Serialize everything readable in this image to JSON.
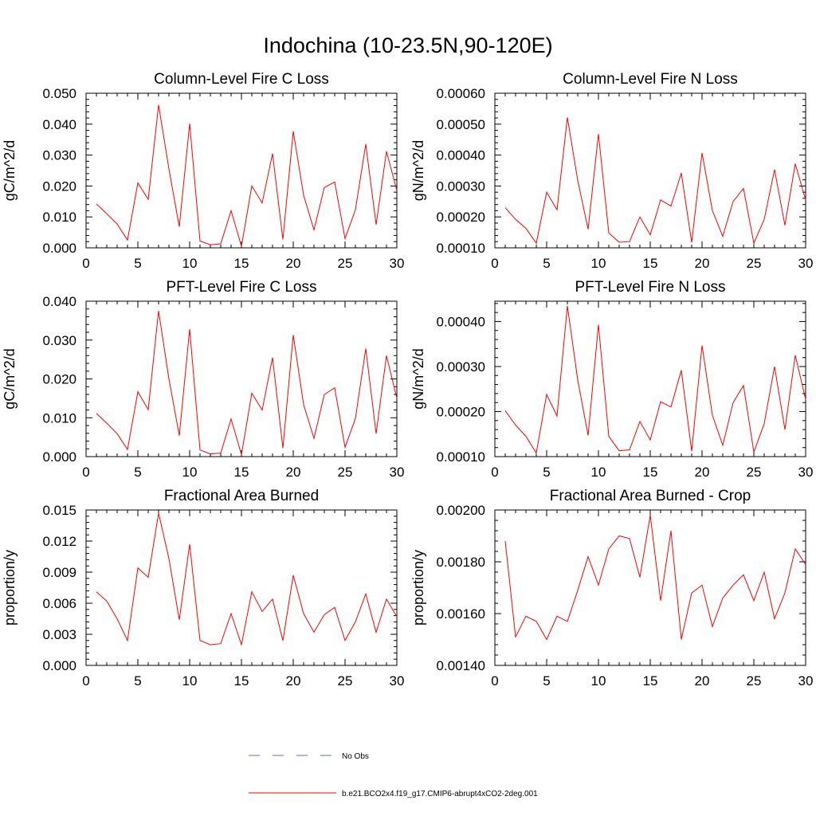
{
  "figure_title": "Indochina (10-23.5N,90-120E)",
  "legend": {
    "entries": [
      {
        "label": "No Obs",
        "color": "#6666cc",
        "style": "dashed"
      },
      {
        "label": "b.e21.BCO2x4.f19_g17.CMIP6-abrupt4xCO2-2deg.001",
        "color": "#ff0000",
        "style": "solid"
      }
    ]
  },
  "chart_data": [
    {
      "type": "line",
      "title": "Column-Level Fire C Loss",
      "xlabel": "",
      "ylabel": "gC/m^2/d",
      "xlim": [
        0,
        30
      ],
      "ylim": [
        0,
        0.05
      ],
      "x_ticks": [
        "0",
        "5",
        "10",
        "15",
        "20",
        "25",
        "30"
      ],
      "y_ticks": [
        "0.000",
        "0.010",
        "0.020",
        "0.030",
        "0.040",
        "0.050"
      ],
      "y_tick_values": [
        0,
        0.01,
        0.02,
        0.03,
        0.04,
        0.05
      ],
      "x": [
        1,
        2,
        3,
        4,
        5,
        6,
        7,
        8,
        9,
        10,
        11,
        12,
        13,
        14,
        15,
        16,
        17,
        18,
        19,
        20,
        21,
        22,
        23,
        24,
        25,
        26,
        27,
        28,
        29,
        30
      ],
      "series": [
        {
          "name": "b.e21.BCO2x4.f19_g17.CMIP6-abrupt4xCO2-2deg.001",
          "color": "#ff0000",
          "values": [
            0.0142,
            0.011,
            0.0077,
            0.0025,
            0.021,
            0.0157,
            0.0462,
            0.0255,
            0.0068,
            0.0402,
            0.0022,
            0.001,
            0.0013,
            0.012,
            0.0005,
            0.02,
            0.0145,
            0.0305,
            0.0027,
            0.0377,
            0.017,
            0.0058,
            0.0195,
            0.0213,
            0.003,
            0.0123,
            0.0335,
            0.0075,
            0.0312,
            0.0185
          ]
        }
      ]
    },
    {
      "type": "line",
      "title": "Column-Level Fire N Loss",
      "xlabel": "",
      "ylabel": "gN/m^2/d",
      "xlim": [
        0,
        30
      ],
      "ylim": [
        0.0001,
        0.0006
      ],
      "x_ticks": [
        "0",
        "5",
        "10",
        "15",
        "20",
        "25",
        "30"
      ],
      "y_ticks": [
        "0.00010",
        "0.00020",
        "0.00030",
        "0.00040",
        "0.00050",
        "0.00060"
      ],
      "y_tick_values": [
        0.0001,
        0.0002,
        0.0003,
        0.0004,
        0.0005,
        0.0006
      ],
      "x": [
        1,
        2,
        3,
        4,
        5,
        6,
        7,
        8,
        9,
        10,
        11,
        12,
        13,
        14,
        15,
        16,
        17,
        18,
        19,
        20,
        21,
        22,
        23,
        24,
        25,
        26,
        27,
        28,
        29,
        30
      ],
      "series": [
        {
          "name": "b.e21.BCO2x4.f19_g17.CMIP6-abrupt4xCO2-2deg.001",
          "color": "#ff0000",
          "values": [
            0.00023,
            0.000192,
            0.000163,
            0.000115,
            0.00028,
            0.000223,
            0.000522,
            0.000318,
            0.00016,
            0.000468,
            0.000148,
            0.000118,
            0.00012,
            0.0002,
            0.000142,
            0.000255,
            0.000235,
            0.000342,
            0.000117,
            0.000407,
            0.00022,
            0.000137,
            0.00025,
            0.000292,
            0.000115,
            0.000192,
            0.000353,
            0.000173,
            0.000372,
            0.000255
          ]
        }
      ]
    },
    {
      "type": "line",
      "title": "PFT-Level Fire C Loss",
      "xlabel": "",
      "ylabel": "gC/m^2/d",
      "xlim": [
        0,
        30
      ],
      "ylim": [
        0,
        0.04
      ],
      "x_ticks": [
        "0",
        "5",
        "10",
        "15",
        "20",
        "25",
        "30"
      ],
      "y_ticks": [
        "0.000",
        "0.010",
        "0.020",
        "0.030",
        "0.040"
      ],
      "y_tick_values": [
        0,
        0.01,
        0.02,
        0.03,
        0.04
      ],
      "x": [
        1,
        2,
        3,
        4,
        5,
        6,
        7,
        8,
        9,
        10,
        11,
        12,
        13,
        14,
        15,
        16,
        17,
        18,
        19,
        20,
        21,
        22,
        23,
        24,
        25,
        26,
        27,
        28,
        29,
        30
      ],
      "series": [
        {
          "name": "b.e21.BCO2x4.f19_g17.CMIP6-abrupt4xCO2-2deg.001",
          "color": "#ff0000",
          "values": [
            0.0111,
            0.0086,
            0.0059,
            0.0018,
            0.0167,
            0.0121,
            0.0375,
            0.02,
            0.0054,
            0.0328,
            0.0017,
            0.0007,
            0.0009,
            0.0097,
            0.0005,
            0.0163,
            0.012,
            0.0255,
            0.0022,
            0.0313,
            0.0134,
            0.0047,
            0.016,
            0.0177,
            0.0024,
            0.0098,
            0.0278,
            0.0059,
            0.026,
            0.015
          ]
        }
      ]
    },
    {
      "type": "line",
      "title": "PFT-Level Fire N Loss",
      "xlabel": "",
      "ylabel": "gN/m^2/d",
      "xlim": [
        0,
        30
      ],
      "ylim": [
        0.0001,
        0.000445
      ],
      "x_ticks": [
        "0",
        "5",
        "10",
        "15",
        "20",
        "25",
        "30"
      ],
      "y_ticks": [
        "0.00010",
        "0.00020",
        "0.00030",
        "0.00040"
      ],
      "y_tick_values": [
        0.0001,
        0.0002,
        0.0003,
        0.0004
      ],
      "x": [
        1,
        2,
        3,
        4,
        5,
        6,
        7,
        8,
        9,
        10,
        11,
        12,
        13,
        14,
        15,
        16,
        17,
        18,
        19,
        20,
        21,
        22,
        23,
        24,
        25,
        26,
        27,
        28,
        29,
        30
      ],
      "series": [
        {
          "name": "b.e21.BCO2x4.f19_g17.CMIP6-abrupt4xCO2-2deg.001",
          "color": "#ff0000",
          "values": [
            0.000202,
            0.00017,
            0.000145,
            0.000108,
            0.000238,
            0.00019,
            0.000435,
            0.00027,
            0.000147,
            0.000393,
            0.000145,
            0.000113,
            0.000115,
            0.000178,
            0.000137,
            0.000222,
            0.00021,
            0.000292,
            0.000112,
            0.000347,
            0.000192,
            0.000125,
            0.00022,
            0.000258,
            0.00011,
            0.000173,
            0.0003,
            0.00016,
            0.000325,
            0.000227
          ]
        }
      ]
    },
    {
      "type": "line",
      "title": "Fractional Area Burned",
      "xlabel": "",
      "ylabel": "proportion/y",
      "xlim": [
        0,
        30
      ],
      "ylim": [
        0,
        0.015
      ],
      "x_ticks": [
        "0",
        "5",
        "10",
        "15",
        "20",
        "25",
        "30"
      ],
      "y_ticks": [
        "0.000",
        "0.003",
        "0.006",
        "0.009",
        "0.012",
        "0.015"
      ],
      "y_tick_values": [
        0,
        0.003,
        0.006,
        0.009,
        0.012,
        0.015
      ],
      "x": [
        1,
        2,
        3,
        4,
        5,
        6,
        7,
        8,
        9,
        10,
        11,
        12,
        13,
        14,
        15,
        16,
        17,
        18,
        19,
        20,
        21,
        22,
        23,
        24,
        25,
        26,
        27,
        28,
        29,
        30
      ],
      "series": [
        {
          "name": "b.e21.BCO2x4.f19_g17.CMIP6-abrupt4xCO2-2deg.001",
          "color": "#ff0000",
          "values": [
            0.0071,
            0.0062,
            0.0045,
            0.0024,
            0.0094,
            0.0085,
            0.0147,
            0.0103,
            0.0044,
            0.0117,
            0.0024,
            0.002,
            0.0021,
            0.005,
            0.002,
            0.0071,
            0.0052,
            0.0064,
            0.0024,
            0.0087,
            0.005,
            0.0032,
            0.0049,
            0.0056,
            0.0024,
            0.0042,
            0.0069,
            0.0032,
            0.0064,
            0.0047
          ]
        }
      ]
    },
    {
      "type": "line",
      "title": "Fractional Area Burned - Crop",
      "xlabel": "",
      "ylabel": "proportion/y",
      "xlim": [
        0,
        30
      ],
      "ylim": [
        0.0014,
        0.002
      ],
      "x_ticks": [
        "0",
        "5",
        "10",
        "15",
        "20",
        "25",
        "30"
      ],
      "y_ticks": [
        "0.00140",
        "0.00160",
        "0.00180",
        "0.00200"
      ],
      "y_tick_values": [
        0.0014,
        0.0016,
        0.0018,
        0.002
      ],
      "x": [
        1,
        2,
        3,
        4,
        5,
        6,
        7,
        8,
        9,
        10,
        11,
        12,
        13,
        14,
        15,
        16,
        17,
        18,
        19,
        20,
        21,
        22,
        23,
        24,
        25,
        26,
        27,
        28,
        29,
        30
      ],
      "series": [
        {
          "name": "b.e21.BCO2x4.f19_g17.CMIP6-abrupt4xCO2-2deg.001",
          "color": "#ff0000",
          "values": [
            0.00188,
            0.00151,
            0.00159,
            0.00157,
            0.0015,
            0.00159,
            0.00157,
            0.00169,
            0.00182,
            0.00171,
            0.00185,
            0.0019,
            0.00189,
            0.00174,
            0.00198,
            0.00165,
            0.00192,
            0.0015,
            0.00168,
            0.00171,
            0.00155,
            0.00166,
            0.00171,
            0.00175,
            0.00165,
            0.00176,
            0.00158,
            0.00168,
            0.00185,
            0.00179
          ]
        }
      ]
    }
  ]
}
